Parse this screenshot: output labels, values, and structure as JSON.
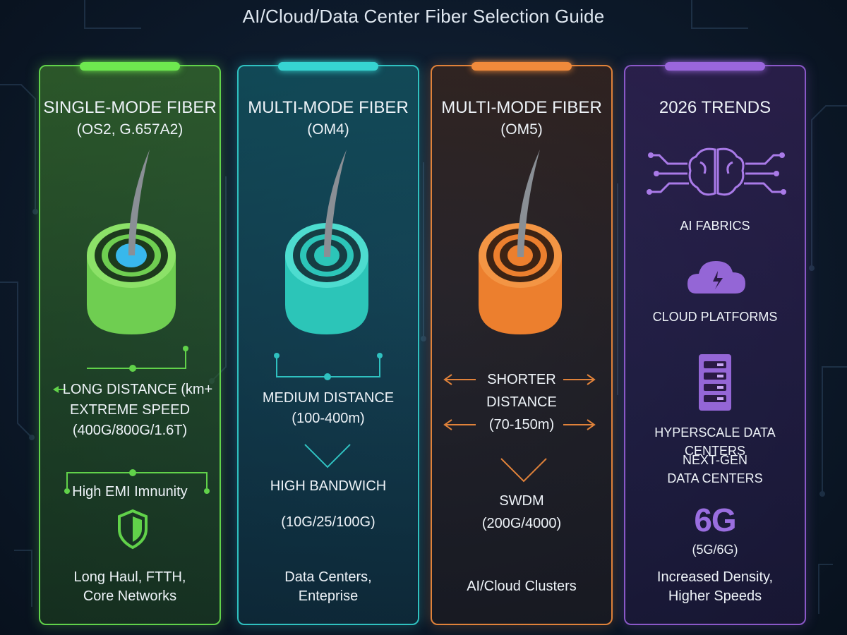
{
  "title": "AI/Cloud/Data Center Fiber Selection Guide",
  "colors": {
    "green": "#61d24a",
    "teal": "#2fc1c0",
    "orange": "#e0823a",
    "purple": "#8a58c8"
  },
  "cards": [
    {
      "heading": "SINGLE-MODE FIBER",
      "subheading": "(OS2, G.657A2)",
      "distance_lines": [
        "LONG DISTANCE (km+",
        "EXTREME SPEED",
        "(400G/800G/1.6T)"
      ],
      "feature": "High EMI Imnunity",
      "feature_icon": "shield-icon",
      "uses": [
        "Long Haul, FTTH,",
        "Core Networks"
      ]
    },
    {
      "heading": "MULTI-MODE FIBER",
      "subheading": "(OM4)",
      "distance_lines": [
        "MEDIUM DISTANCE",
        "(100-400m)"
      ],
      "feature": "HIGH BANDWICH",
      "speeds": "(10G/25/100G)",
      "uses": [
        "Data Centers,",
        "Enteprise"
      ]
    },
    {
      "heading": "MULTI-MODE FIBER",
      "subheading": "(OM5)",
      "distance_lines": [
        "SHORTER",
        "DISTANCE",
        "(70-150m)"
      ],
      "feature": "SWDM",
      "speeds": "(200G/4000)",
      "uses": [
        "AI/Cloud Clusters"
      ]
    },
    {
      "heading": "2026 TRENDS",
      "items": [
        "AI FABRICS",
        "CLOUD PLATFORMS",
        "HYPERSCALE DATA CENTERS"
      ],
      "next_gen": [
        "NEXT-GEN",
        "DATA CENTERS"
      ],
      "big_label": "6G",
      "big_sub": "(5G/6G)",
      "footer": [
        "Increased Density,",
        "Higher Speeds"
      ],
      "icons": [
        "brain-circuit-icon",
        "cloud-icon",
        "server-rack-icon"
      ]
    }
  ]
}
